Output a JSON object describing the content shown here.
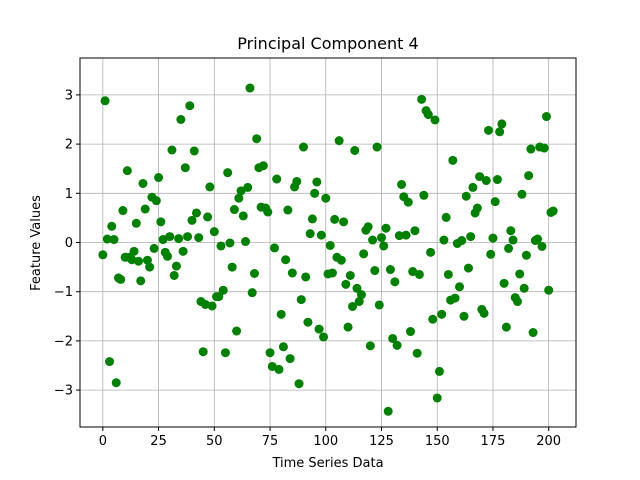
{
  "chart_data": {
    "type": "scatter",
    "title": "Principal Component 4",
    "xlabel": "Time Series Data",
    "ylabel": "Feature Values",
    "xlim": [
      -10.25,
      212.25
    ],
    "ylim": [
      -3.75,
      3.75
    ],
    "xticks": [
      0,
      25,
      50,
      75,
      100,
      125,
      150,
      175,
      200
    ],
    "yticks": [
      -3,
      -2,
      -1,
      0,
      1,
      2,
      3
    ],
    "grid": true,
    "marker_color": "#008000",
    "series": [
      {
        "x": [
          0,
          1,
          2,
          3,
          4,
          5,
          6,
          7,
          8,
          9,
          10,
          11,
          12,
          13,
          14,
          15,
          16,
          17,
          18,
          19,
          20,
          21,
          22,
          23,
          24,
          25,
          26,
          27,
          28,
          29,
          30,
          31,
          32,
          33,
          34,
          35,
          36,
          37,
          38,
          39,
          40,
          41,
          42,
          43,
          44,
          45,
          46,
          47,
          48,
          49,
          50,
          51,
          52,
          53,
          54,
          55,
          56,
          57,
          58,
          59,
          60,
          61,
          62,
          63,
          64,
          65,
          66,
          67,
          68,
          69,
          70,
          71,
          72,
          73,
          74,
          75,
          76,
          77,
          78,
          79,
          80,
          81,
          82,
          83,
          84,
          85,
          86,
          87,
          88,
          89,
          90,
          91,
          92,
          93,
          94,
          95,
          96,
          97,
          98,
          99,
          100,
          101,
          102,
          103,
          104,
          105,
          106,
          107,
          108,
          109,
          110,
          111,
          112,
          113,
          114,
          115,
          116,
          117,
          118,
          119,
          120,
          121,
          122,
          123,
          124,
          125,
          126,
          127,
          128,
          129,
          130,
          131,
          132,
          133,
          134,
          135,
          136,
          137,
          138,
          139,
          140,
          141,
          142,
          143,
          144,
          145,
          146,
          147,
          148,
          149,
          150,
          151,
          152,
          153,
          154,
          155,
          156,
          157,
          158,
          159,
          160,
          161,
          162,
          163,
          164,
          165,
          166,
          167,
          168,
          169,
          170,
          171,
          172,
          173,
          174,
          175,
          176,
          177,
          178,
          179,
          180,
          181,
          182,
          183,
          184,
          185,
          186,
          187,
          188,
          189,
          190,
          191,
          192,
          193,
          194,
          195,
          196,
          197,
          198,
          199,
          200,
          201,
          202
        ],
        "y": [
          -0.25,
          2.88,
          0.07,
          -2.42,
          0.33,
          0.06,
          -2.85,
          -0.72,
          -0.75,
          0.65,
          -0.3,
          1.46,
          -0.3,
          -0.35,
          -0.18,
          0.39,
          -0.38,
          -0.78,
          1.2,
          0.68,
          -0.36,
          -0.5,
          0.92,
          -0.12,
          0.85,
          1.32,
          0.42,
          0.06,
          -0.2,
          -0.28,
          0.12,
          1.88,
          -0.67,
          -0.48,
          0.08,
          2.5,
          -0.18,
          1.52,
          0.12,
          2.78,
          0.45,
          1.86,
          0.6,
          0.1,
          -1.2,
          -2.22,
          -1.26,
          0.52,
          1.13,
          -1.29,
          0.22,
          -1.1,
          -1.1,
          -0.07,
          -0.97,
          -2.24,
          1.42,
          -0.01,
          -0.5,
          0.67,
          -1.8,
          0.9,
          1.05,
          0.54,
          0.02,
          1.12,
          3.14,
          -1.02,
          -0.63,
          2.11,
          1.52,
          0.72,
          1.56,
          0.7,
          0.62,
          -2.24,
          -2.52,
          -0.11,
          1.29,
          -2.58,
          -1.46,
          -2.12,
          -0.35,
          0.66,
          -2.36,
          -0.62,
          1.13,
          1.24,
          -2.87,
          -1.16,
          1.94,
          -0.7,
          -1.62,
          0.18,
          0.48,
          1.0,
          1.23,
          -1.76,
          0.15,
          -1.92,
          0.9,
          -0.64,
          -0.06,
          -0.62,
          0.47,
          -0.3,
          2.07,
          -0.36,
          0.42,
          -0.85,
          -1.72,
          -0.67,
          -1.3,
          1.87,
          -0.93,
          -1.2,
          -1.06,
          -0.23,
          0.25,
          0.32,
          -2.1,
          0.05,
          -0.57,
          1.94,
          -1.27,
          0.1,
          -0.07,
          0.29,
          -3.43,
          -0.55,
          -1.95,
          -0.8,
          -2.09,
          0.14,
          1.18,
          0.93,
          0.15,
          0.82,
          -1.81,
          -0.59,
          0.24,
          -2.25,
          -0.65,
          2.91,
          0.96,
          2.68,
          2.6,
          -0.2,
          -1.56,
          2.49,
          -3.16,
          -2.62,
          -1.46,
          0.05,
          0.51,
          -0.65,
          -1.17,
          1.67,
          -1.13,
          -0.02,
          -0.9,
          0.04,
          -1.5,
          0.94,
          -0.52,
          0.12,
          1.12,
          0.6,
          0.7,
          1.34,
          -1.36,
          -1.44,
          1.26,
          2.28,
          -0.24,
          0.09,
          0.83,
          1.28,
          2.25,
          2.41,
          -0.83,
          -1.72,
          -0.12,
          0.24,
          0.05,
          -1.12,
          -1.2,
          -0.64,
          0.98,
          -0.93,
          -0.26,
          1.36,
          1.9,
          -1.83,
          0.04,
          0.07,
          1.94,
          -0.08,
          1.92,
          2.56,
          -0.97,
          0.61,
          0.64
        ]
      }
    ]
  }
}
